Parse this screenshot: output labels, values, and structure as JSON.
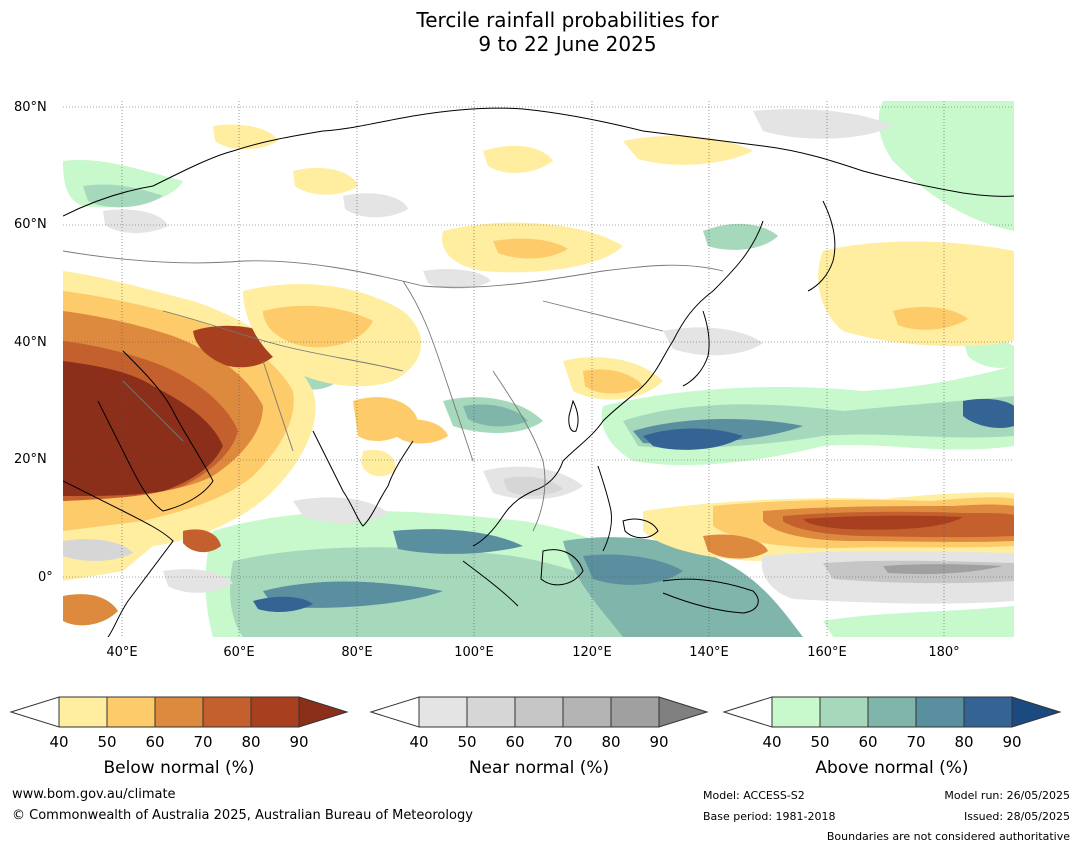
{
  "title": {
    "line1": "Tercile rainfall probabilities for",
    "line2": "9 to 22 June 2025"
  },
  "map": {
    "lat_labels": [
      "80°N",
      "60°N",
      "40°N",
      "20°N",
      "0°"
    ],
    "lon_labels": [
      "40°E",
      "60°E",
      "80°E",
      "100°E",
      "120°E",
      "140°E",
      "160°E",
      "180°"
    ],
    "region": "Asia and western Pacific",
    "extent": {
      "lon_min": 30,
      "lon_max": 192,
      "lat_min": -10,
      "lat_max": 81
    }
  },
  "legends": [
    {
      "id": "below",
      "title": "Below normal (%)",
      "ticks": [
        "40",
        "50",
        "60",
        "70",
        "80",
        "90"
      ],
      "colors": [
        "#ffeda0",
        "#fecb6a",
        "#dd8a3e",
        "#c4602e",
        "#a8401f",
        "#8c2f1a"
      ]
    },
    {
      "id": "near",
      "title": "Near normal (%)",
      "ticks": [
        "40",
        "50",
        "60",
        "70",
        "80",
        "90"
      ],
      "colors": [
        "#e4e4e4",
        "#d6d6d6",
        "#c6c6c6",
        "#b4b4b4",
        "#a0a0a0",
        "#808080"
      ]
    },
    {
      "id": "above",
      "title": "Above normal (%)",
      "ticks": [
        "40",
        "50",
        "60",
        "70",
        "80",
        "90"
      ],
      "colors": [
        "#c7f9cc",
        "#a6d8bc",
        "#7fb5ab",
        "#5a8fa0",
        "#346494",
        "#1a4a80"
      ]
    }
  ],
  "footer": {
    "url": "www.bom.gov.au/climate",
    "copyright": "© Commonwealth of Australia 2025, Australian Bureau of Meteorology",
    "model": "Model: ACCESS-S2",
    "base_period": "Base period: 1981-2018",
    "model_run": "Model run: 26/05/2025",
    "issued": "Issued: 28/05/2025",
    "disclaimer": "Boundaries are not considered authoritative"
  }
}
